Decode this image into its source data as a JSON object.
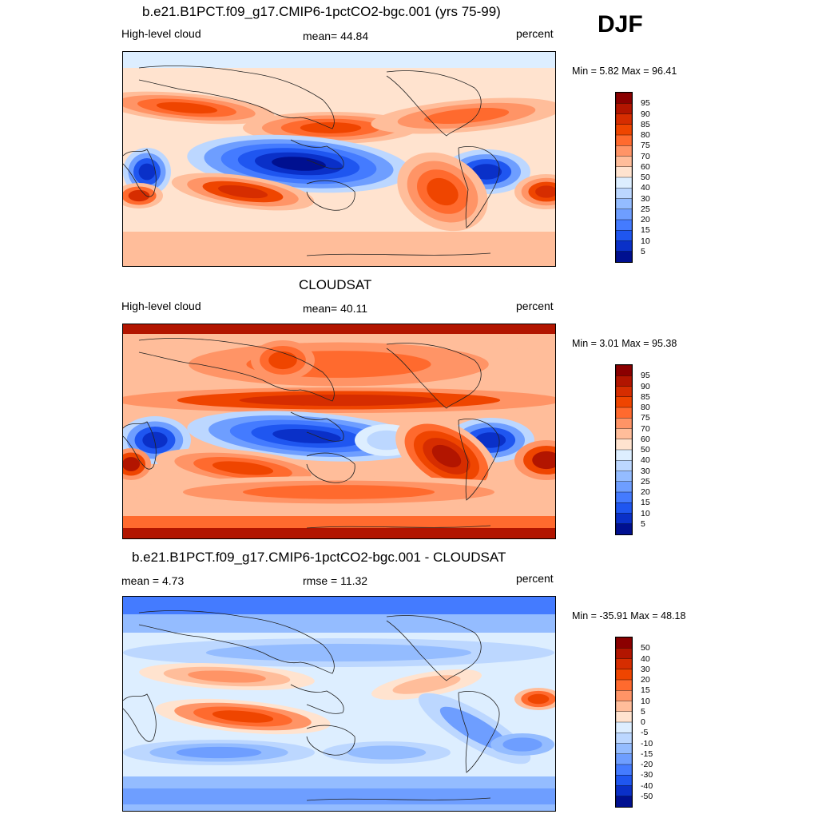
{
  "season": "DJF",
  "panels": [
    {
      "title": "b.e21.B1PCT.f09_g17.CMIP6-1pctCO2-bgc.001 (yrs 75-99)",
      "left_label": "High-level cloud",
      "center_label": "mean=  44.84",
      "right_label": "percent",
      "minmax": "Min =   5.82 Max =  96.41",
      "map_kind": "model",
      "colorbar": {
        "labels": [
          "95",
          "90",
          "85",
          "80",
          "75",
          "70",
          "60",
          "50",
          "40",
          "30",
          "25",
          "20",
          "15",
          "10",
          "5"
        ],
        "colors": [
          "#8b0000",
          "#b21500",
          "#d62d00",
          "#ef4500",
          "#ff6a2e",
          "#ff9466",
          "#ffbd9a",
          "#ffe3cf",
          "#ddeeff",
          "#bcd7ff",
          "#94bcff",
          "#6e9eff",
          "#447bff",
          "#1f56f0",
          "#0a30c8",
          "#001090"
        ]
      }
    },
    {
      "title": "CLOUDSAT",
      "left_label": "High-level cloud",
      "center_label": "mean=  40.11",
      "right_label": "percent",
      "minmax": "Min =   3.01 Max =  95.38",
      "map_kind": "obs",
      "colorbar": {
        "labels": [
          "95",
          "90",
          "85",
          "80",
          "75",
          "70",
          "60",
          "50",
          "40",
          "30",
          "25",
          "20",
          "15",
          "10",
          "5"
        ],
        "colors": [
          "#8b0000",
          "#b21500",
          "#d62d00",
          "#ef4500",
          "#ff6a2e",
          "#ff9466",
          "#ffbd9a",
          "#ffe3cf",
          "#ddeeff",
          "#bcd7ff",
          "#94bcff",
          "#6e9eff",
          "#447bff",
          "#1f56f0",
          "#0a30c8",
          "#001090"
        ]
      }
    },
    {
      "title": "b.e21.B1PCT.f09_g17.CMIP6-1pctCO2-bgc.001 - CLOUDSAT",
      "left_label": "mean =   4.73",
      "center_label": "rmse =  11.32",
      "right_label": "percent",
      "minmax": "Min = -35.91 Max =  48.18",
      "map_kind": "diff",
      "colorbar": {
        "labels": [
          "50",
          "40",
          "30",
          "20",
          "15",
          "10",
          "5",
          "0",
          "-5",
          "-10",
          "-15",
          "-20",
          "-30",
          "-40",
          "-50"
        ],
        "colors": [
          "#8b0000",
          "#b21500",
          "#d62d00",
          "#ef4500",
          "#ff6a2e",
          "#ff9466",
          "#ffbd9a",
          "#ffe3cf",
          "#ddeeff",
          "#bcd7ff",
          "#94bcff",
          "#6e9eff",
          "#447bff",
          "#1f56f0",
          "#0a30c8",
          "#001090"
        ]
      }
    }
  ]
}
